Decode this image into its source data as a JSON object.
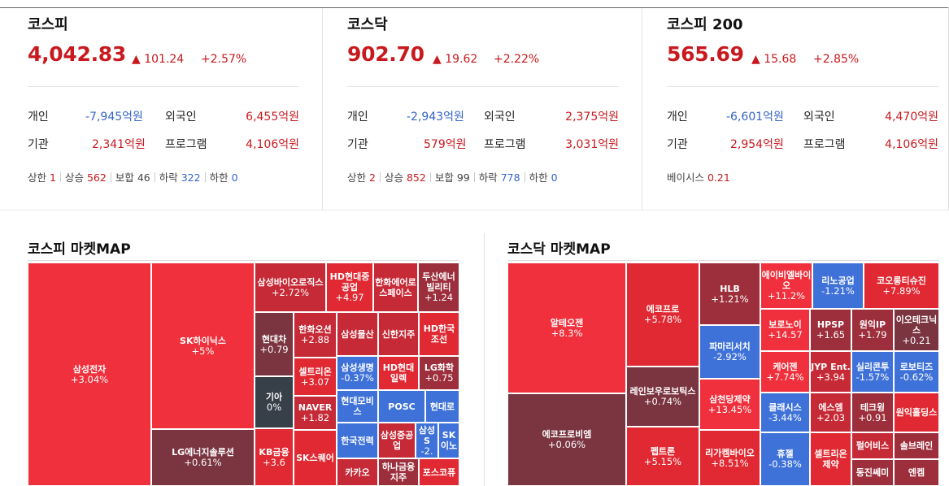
{
  "indices": [
    {
      "title": "코스피",
      "value": "4,042.83",
      "change": "▲ 101.24",
      "percent": "+2.57%",
      "rows": [
        {
          "l1": "개인",
          "v1": "-7,945억원",
          "s1": "neg",
          "l2": "외국인",
          "v2": "6,455억원",
          "s2": "pos"
        },
        {
          "l1": "기관",
          "v1": "2,341억원",
          "s1": "pos",
          "l2": "프로그램",
          "v2": "4,106억원",
          "s2": "pos"
        }
      ],
      "breadth": [
        {
          "label": "상한",
          "value": "1",
          "color": "pos"
        },
        {
          "label": "상승",
          "value": "562",
          "color": "pos"
        },
        {
          "label": "보합",
          "value": "46",
          "color": "neutral"
        },
        {
          "label": "하락",
          "value": "322",
          "color": "neg"
        },
        {
          "label": "하한",
          "value": "0",
          "color": "neg"
        }
      ]
    },
    {
      "title": "코스닥",
      "value": "902.70",
      "change": "▲ 19.62",
      "percent": "+2.22%",
      "rows": [
        {
          "l1": "개인",
          "v1": "-2,943억원",
          "s1": "neg",
          "l2": "외국인",
          "v2": "2,375억원",
          "s2": "pos"
        },
        {
          "l1": "기관",
          "v1": "579억원",
          "s1": "pos",
          "l2": "프로그램",
          "v2": "3,031억원",
          "s2": "pos"
        }
      ],
      "breadth": [
        {
          "label": "상한",
          "value": "2",
          "color": "pos"
        },
        {
          "label": "상승",
          "value": "852",
          "color": "pos"
        },
        {
          "label": "보합",
          "value": "99",
          "color": "neutral"
        },
        {
          "label": "하락",
          "value": "778",
          "color": "neg"
        },
        {
          "label": "하한",
          "value": "0",
          "color": "neg"
        }
      ]
    },
    {
      "title": "코스피 200",
      "value": "565.69",
      "change": "▲ 15.68",
      "percent": "+2.85%",
      "rows": [
        {
          "l1": "개인",
          "v1": "-6,601억원",
          "s1": "neg",
          "l2": "외국인",
          "v2": "4,470억원",
          "s2": "pos"
        },
        {
          "l1": "기관",
          "v1": "2,954억원",
          "s1": "pos",
          "l2": "프로그램",
          "v2": "4,106억원",
          "s2": "pos"
        }
      ],
      "basis": {
        "label": "베이시스",
        "value": "0.21"
      }
    }
  ],
  "kospi_map": {
    "title": "코스피 마켓MAP",
    "cells": [
      {
        "name": "삼성전자",
        "value": "+3.04%",
        "color": "r1"
      },
      {
        "name": "SK하이닉스",
        "value": "+5%",
        "color": "r1"
      },
      {
        "name": "LG에너지솔루션",
        "value": "+0.61%",
        "color": "r5"
      },
      {
        "name": "삼성바이오로직스",
        "value": "+2.72%",
        "color": "r3"
      },
      {
        "name": "HD현대중공업",
        "value": "+4.97",
        "color": "r2"
      },
      {
        "name": "한화에어로스페이스",
        "value": "",
        "color": "r3"
      },
      {
        "name": "두산에너빌리티",
        "value": "+1.24",
        "color": "r4"
      },
      {
        "name": "현대차",
        "value": "+0.79",
        "color": "r5"
      },
      {
        "name": "기아",
        "value": "0%",
        "color": "g1"
      },
      {
        "name": "한화오션",
        "value": "+2.88",
        "color": "r3"
      },
      {
        "name": "셀트리온",
        "value": "+3.07",
        "color": "r2"
      },
      {
        "name": "NAVER",
        "value": "+1.82",
        "color": "r3"
      },
      {
        "name": "KB금융",
        "value": "+3.6",
        "color": "r2"
      },
      {
        "name": "SK스퀘어",
        "value": "",
        "color": "r2"
      },
      {
        "name": "삼성물산",
        "value": "",
        "color": "r3"
      },
      {
        "name": "신한지주",
        "value": "",
        "color": "r3"
      },
      {
        "name": "HD한국조선",
        "value": "",
        "color": "r2"
      },
      {
        "name": "삼성생명",
        "value": "-0.37%",
        "color": "b1"
      },
      {
        "name": "HD현대일렉",
        "value": "",
        "color": "r2"
      },
      {
        "name": "LG화학",
        "value": "+0.75",
        "color": "r4"
      },
      {
        "name": "현대모비스",
        "value": "",
        "color": "b1"
      },
      {
        "name": "POSC",
        "value": "",
        "color": "b1"
      },
      {
        "name": "현대로",
        "value": "",
        "color": "b1"
      },
      {
        "name": "한국전력",
        "value": "",
        "color": "b1"
      },
      {
        "name": "삼성중공업",
        "value": "",
        "color": "r3"
      },
      {
        "name": "삼성S",
        "value": "-2.",
        "color": "b1"
      },
      {
        "name": "SK이노",
        "value": "",
        "color": "b1"
      },
      {
        "name": "카카오",
        "value": "",
        "color": "r3"
      },
      {
        "name": "하나금융지주",
        "value": "",
        "color": "r4"
      },
      {
        "name": "포스코퓨",
        "value": "",
        "color": "r2"
      }
    ]
  },
  "kosdaq_map": {
    "title": "코스닥 마켓MAP",
    "cells": [
      {
        "name": "알테오젠",
        "value": "+8.3%",
        "color": "r1"
      },
      {
        "name": "에코프로비엠",
        "value": "+0.06%",
        "color": "r5"
      },
      {
        "name": "에코프로",
        "value": "+5.78%",
        "color": "r2"
      },
      {
        "name": "레인보우로보틱스",
        "value": "+0.74%",
        "color": "r5"
      },
      {
        "name": "펩트론",
        "value": "+5.15%",
        "color": "r2"
      },
      {
        "name": "HLB",
        "value": "+1.21%",
        "color": "r4"
      },
      {
        "name": "파마리서치",
        "value": "-2.92%",
        "color": "b1"
      },
      {
        "name": "삼천당제약",
        "value": "+13.45%",
        "color": "r1"
      },
      {
        "name": "리가켐바이오",
        "value": "+8.51%",
        "color": "r2"
      },
      {
        "name": "에이비엘바이오",
        "value": "+11.2%",
        "color": "r1"
      },
      {
        "name": "리노공업",
        "value": "-1.21%",
        "color": "b1"
      },
      {
        "name": "코오롱티슈진",
        "value": "+7.89%",
        "color": "r2"
      },
      {
        "name": "보로노이",
        "value": "+14.57",
        "color": "r1"
      },
      {
        "name": "HPSP",
        "value": "+1.65",
        "color": "r4"
      },
      {
        "name": "원익IP",
        "value": "+1.79",
        "color": "r4"
      },
      {
        "name": "이오테크닉스",
        "value": "+0.21",
        "color": "r5"
      },
      {
        "name": "케어젠",
        "value": "+7.74%",
        "color": "r1"
      },
      {
        "name": "JYP Ent.",
        "value": "+3.94",
        "color": "r3"
      },
      {
        "name": "실리콘투",
        "value": "-1.57%",
        "color": "b1"
      },
      {
        "name": "로보티즈",
        "value": "-0.62%",
        "color": "b1"
      },
      {
        "name": "클래시스",
        "value": "-3.44%",
        "color": "b1"
      },
      {
        "name": "에스엠",
        "value": "+2.03",
        "color": "r3"
      },
      {
        "name": "테크윙",
        "value": "+0.91",
        "color": "r4"
      },
      {
        "name": "원익홀딩스",
        "value": "",
        "color": "r2"
      },
      {
        "name": "휴젤",
        "value": "-0.38%",
        "color": "b1"
      },
      {
        "name": "셀트리온제약",
        "value": "",
        "color": "r2"
      },
      {
        "name": "펄어비스",
        "value": "",
        "color": "r3"
      },
      {
        "name": "솔브레인",
        "value": "",
        "color": "r4"
      },
      {
        "name": "동진쎄미",
        "value": "",
        "color": "r4"
      },
      {
        "name": "엔켐",
        "value": "",
        "color": "r4"
      }
    ]
  }
}
